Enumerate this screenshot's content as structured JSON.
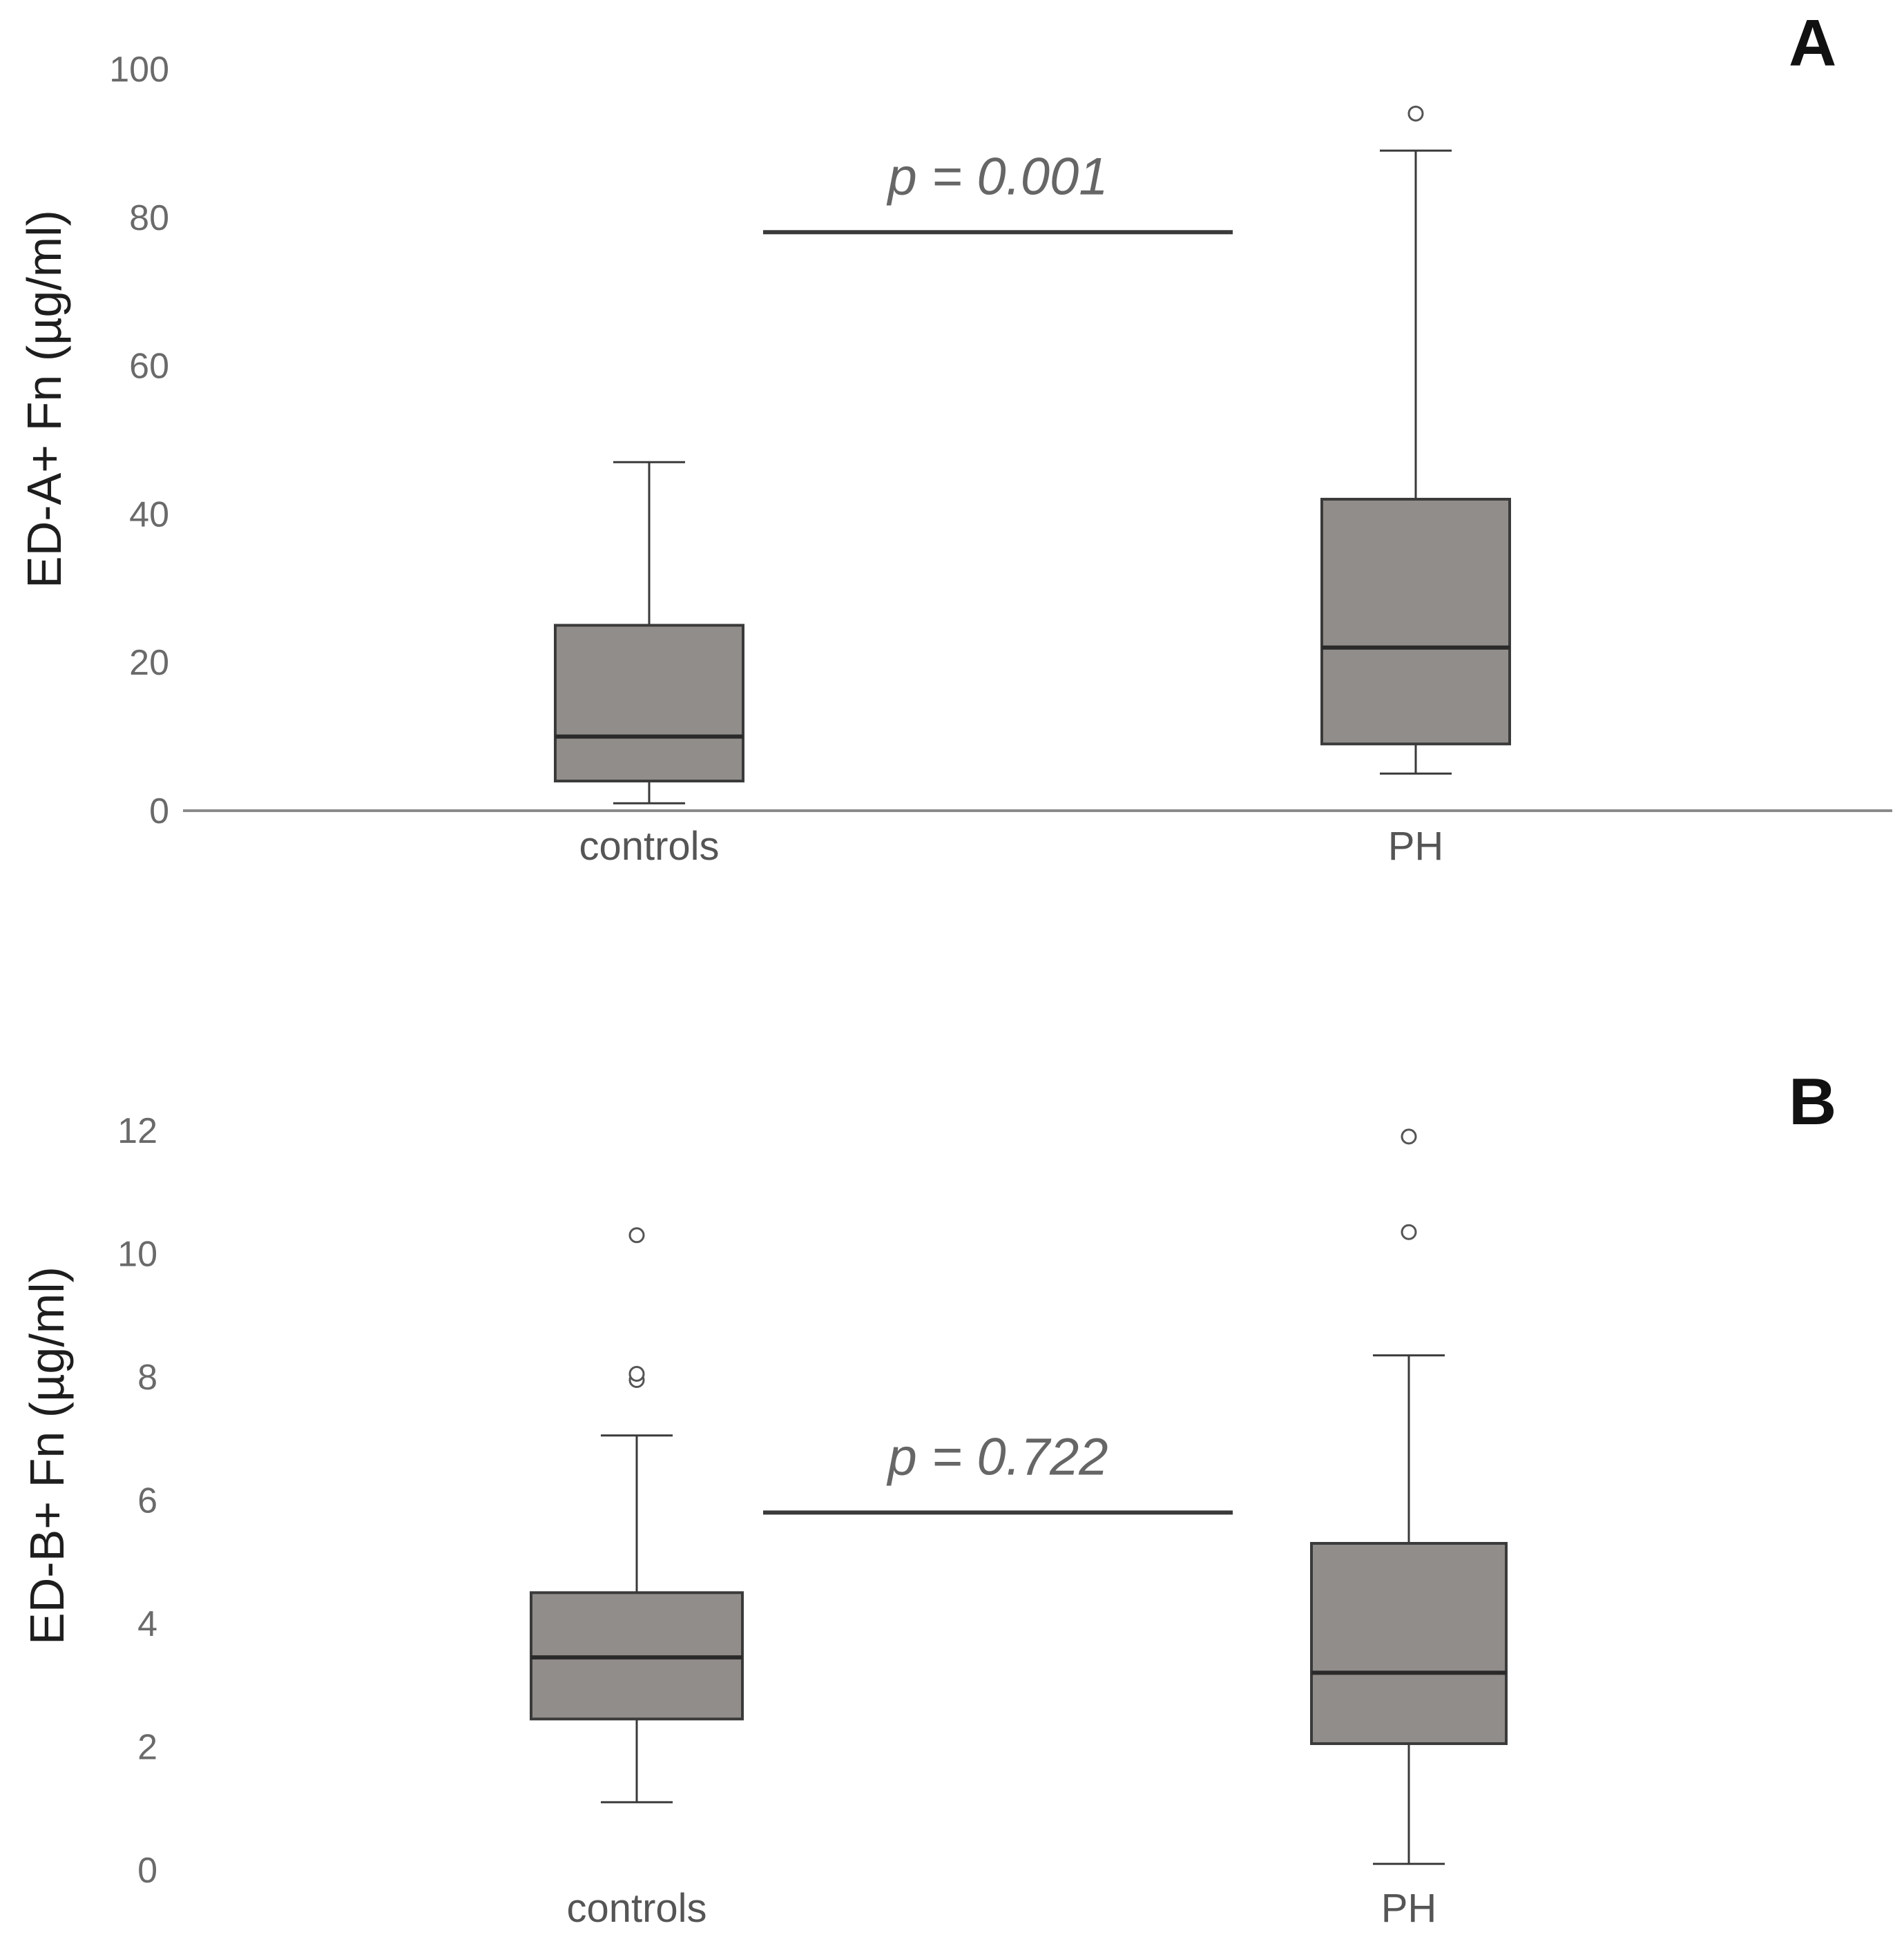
{
  "chart_data": [
    {
      "type": "boxplot",
      "panel_label": "A",
      "ylabel": "ED-A+ Fn (µg/ml)",
      "ylim": [
        0,
        100
      ],
      "yticks": [
        "0",
        "20",
        "40",
        "60",
        "80",
        "100"
      ],
      "categories": [
        "controls",
        "PH"
      ],
      "boxes": [
        {
          "category": "controls",
          "whisker_low": 1,
          "q1": 4,
          "median": 10,
          "q3": 25,
          "whisker_high": 47,
          "outliers": []
        },
        {
          "category": "PH",
          "whisker_low": 5,
          "q1": 9,
          "median": 22,
          "q3": 42,
          "whisker_high": 89,
          "outliers": [
            94
          ]
        }
      ],
      "annotation": {
        "text": "p = 0.001",
        "bracket_y": 78
      }
    },
    {
      "type": "boxplot",
      "panel_label": "B",
      "ylabel": "ED-B+ Fn (µg/ml)",
      "ylim": [
        0,
        12
      ],
      "yticks": [
        "0",
        "2",
        "4",
        "6",
        "8",
        "10",
        "12"
      ],
      "categories": [
        "controls",
        "PH"
      ],
      "boxes": [
        {
          "category": "controls",
          "whisker_low": 1.1,
          "q1": 2.45,
          "median": 3.45,
          "q3": 4.5,
          "whisker_high": 7.05,
          "outliers": [
            7.95,
            8.05,
            10.3
          ]
        },
        {
          "category": "PH",
          "whisker_low": 0.1,
          "q1": 2.05,
          "median": 3.2,
          "q3": 5.3,
          "whisker_high": 8.35,
          "outliers": [
            10.35,
            11.9
          ]
        }
      ],
      "annotation": {
        "text": "p = 0.722",
        "bracket_y": 5.8
      }
    }
  ]
}
